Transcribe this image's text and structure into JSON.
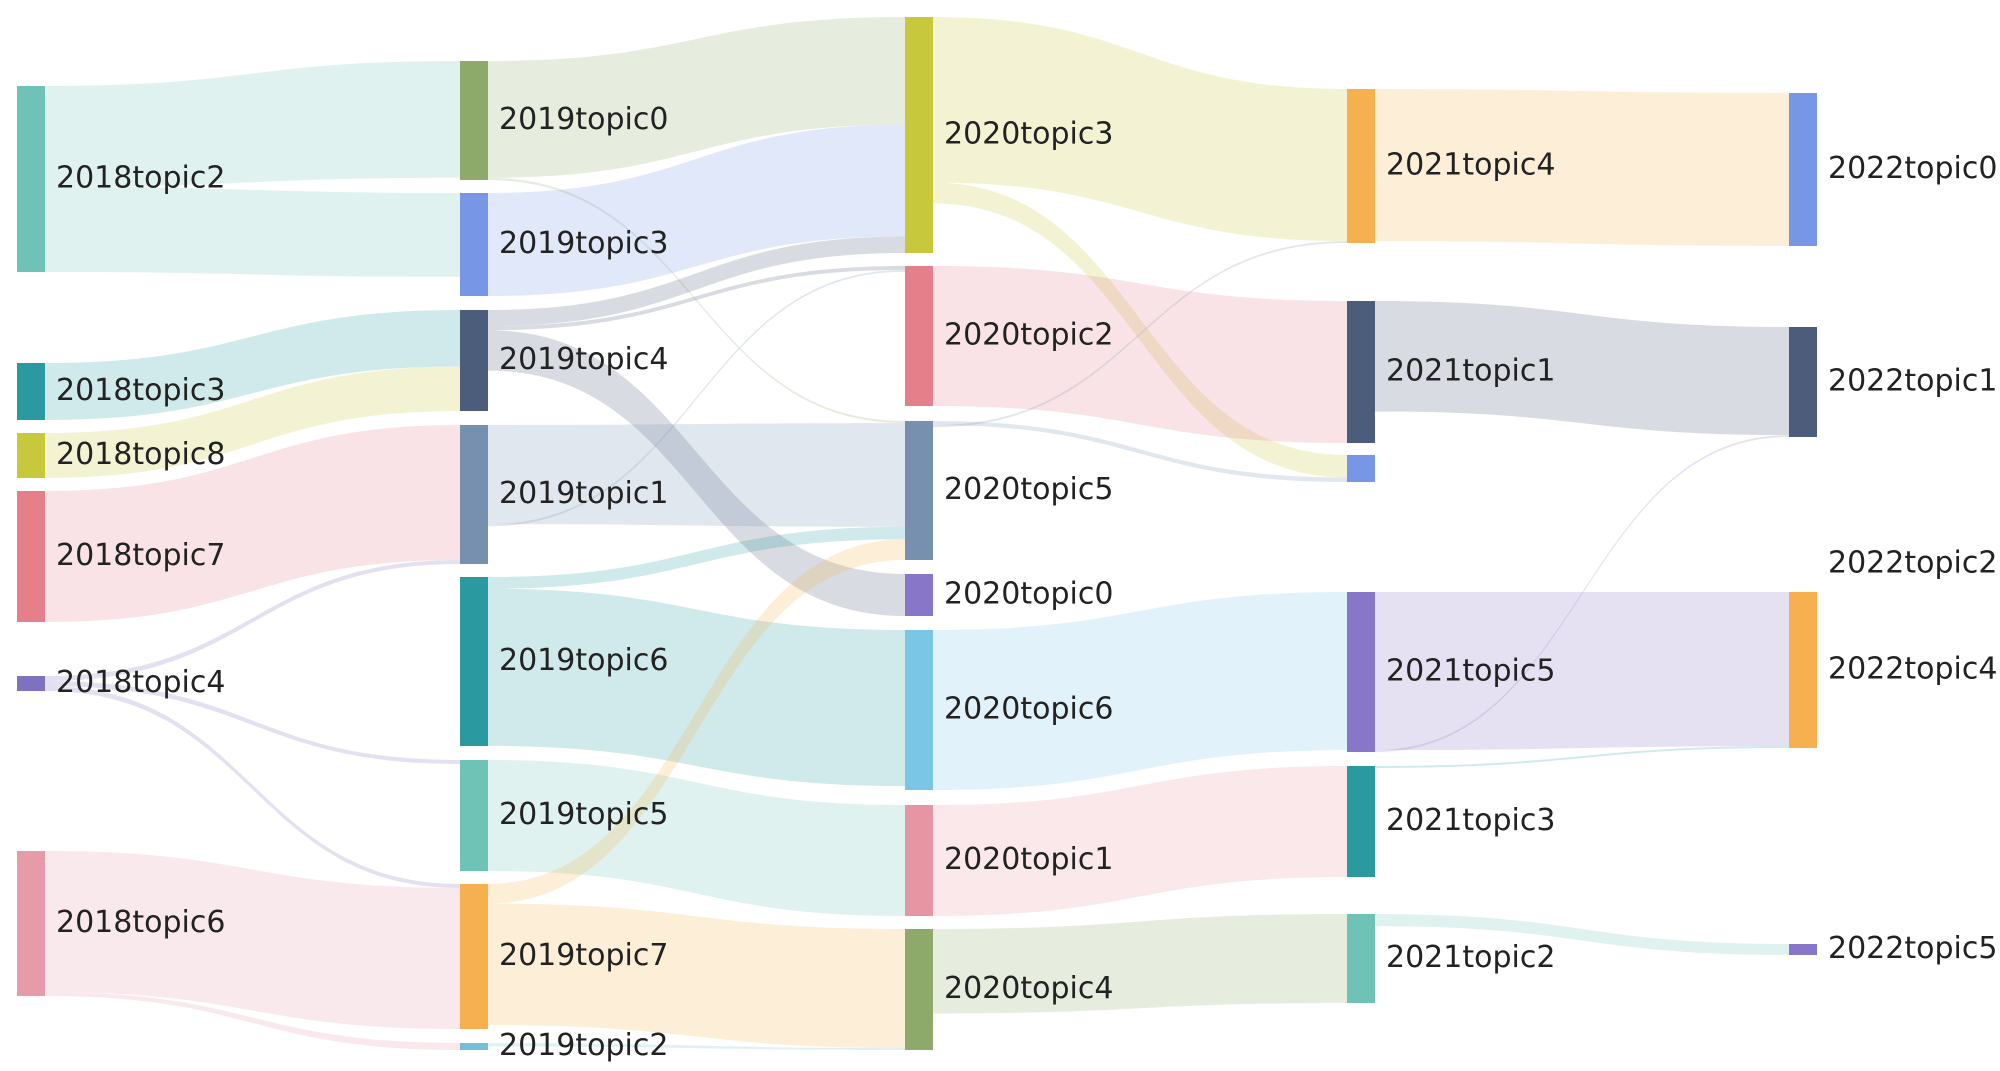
{
  "diagram": {
    "type": "sankey",
    "nodes": [
      {
        "id": "n18_2",
        "label": "2018topic2",
        "color": "#6fc3b6"
      },
      {
        "id": "n18_3",
        "label": "2018topic3",
        "color": "#2a9aa0"
      },
      {
        "id": "n18_8",
        "label": "2018topic8",
        "color": "#c8c83c"
      },
      {
        "id": "n18_7",
        "label": "2018topic7",
        "color": "#e5808b"
      },
      {
        "id": "n18_4",
        "label": "2018topic4",
        "color": "#7e72c0"
      },
      {
        "id": "n18_6",
        "label": "2018topic6",
        "color": "#e79aa8"
      },
      {
        "id": "n19_0",
        "label": "2019topic0",
        "color": "#8eaa6a"
      },
      {
        "id": "n19_3",
        "label": "2019topic3",
        "color": "#7896e6"
      },
      {
        "id": "n19_4",
        "label": "2019topic4",
        "color": "#4c5d7c"
      },
      {
        "id": "n19_1",
        "label": "2019topic1",
        "color": "#7790b0"
      },
      {
        "id": "n19_6",
        "label": "2019topic6",
        "color": "#2b9aa0"
      },
      {
        "id": "n19_5",
        "label": "2019topic5",
        "color": "#6fc3b6"
      },
      {
        "id": "n19_7",
        "label": "2019topic7",
        "color": "#f6b04f"
      },
      {
        "id": "n19_2",
        "label": "2019topic2",
        "color": "#73bfd7"
      },
      {
        "id": "n20_3",
        "label": "2020topic3",
        "color": "#c8c83c"
      },
      {
        "id": "n20_2",
        "label": "2020topic2",
        "color": "#e5808b"
      },
      {
        "id": "n20_5",
        "label": "2020topic5",
        "color": "#7790b0"
      },
      {
        "id": "n20_0",
        "label": "2020topic0",
        "color": "#8876c8"
      },
      {
        "id": "n20_6",
        "label": "2020topic6",
        "color": "#7ac6e6"
      },
      {
        "id": "n20_1",
        "label": "2020topic1",
        "color": "#e895a3"
      },
      {
        "id": "n20_4",
        "label": "2020topic4",
        "color": "#8eaa6a"
      },
      {
        "id": "n21_4",
        "label": "2021topic4",
        "color": "#f6b04f"
      },
      {
        "id": "n21_1",
        "label": "2021topic1",
        "color": "#4c5d7c"
      },
      {
        "id": "n21_x",
        "label": "",
        "color": "#7896e6"
      },
      {
        "id": "n21_5",
        "label": "2021topic5",
        "color": "#8876c8"
      },
      {
        "id": "n21_3",
        "label": "2021topic3",
        "color": "#2b9aa0"
      },
      {
        "id": "n21_2",
        "label": "2021topic2",
        "color": "#6fc3b6"
      },
      {
        "id": "n22_0",
        "label": "2022topic0",
        "color": "#7896e6"
      },
      {
        "id": "n22_1",
        "label": "2022topic1",
        "color": "#4c5d7c"
      },
      {
        "id": "n22_2",
        "label": "2022topic2",
        "color": "#f6b04f"
      },
      {
        "id": "n22_4",
        "label": "2022topic4",
        "color": "#f6b04f"
      },
      {
        "id": "n22_5",
        "label": "2022topic5",
        "color": "#8876c8"
      }
    ],
    "links": [
      {
        "source": "n18_2",
        "target": "n19_0",
        "value": 26
      },
      {
        "source": "n18_2",
        "target": "n19_3",
        "value": 22
      },
      {
        "source": "n18_3",
        "target": "n19_4",
        "value": 14
      },
      {
        "source": "n18_8",
        "target": "n19_4",
        "value": 11
      },
      {
        "source": "n18_7",
        "target": "n19_1",
        "value": 34
      },
      {
        "source": "n18_4",
        "target": "n19_1",
        "value": 1
      },
      {
        "source": "n18_4",
        "target": "n19_5",
        "value": 1
      },
      {
        "source": "n18_4",
        "target": "n19_7",
        "value": 1
      },
      {
        "source": "n18_6",
        "target": "n19_7",
        "value": 36
      },
      {
        "source": "n18_6",
        "target": "n19_2",
        "value": 1
      },
      {
        "source": "n19_0",
        "target": "n20_3",
        "value": 26
      },
      {
        "source": "n19_0",
        "target": "n20_5",
        "value": 0.5
      },
      {
        "source": "n19_3",
        "target": "n20_3",
        "value": 27
      },
      {
        "source": "n19_4",
        "target": "n20_3",
        "value": 4
      },
      {
        "source": "n19_4",
        "target": "n20_2",
        "value": 1
      },
      {
        "source": "n19_4",
        "target": "n20_0",
        "value": 10
      },
      {
        "source": "n19_1",
        "target": "n20_5",
        "value": 25
      },
      {
        "source": "n19_1",
        "target": "n20_2",
        "value": 0.5
      },
      {
        "source": "n19_6",
        "target": "n20_5",
        "value": 3
      },
      {
        "source": "n19_6",
        "target": "n20_6",
        "value": 40
      },
      {
        "source": "n19_5",
        "target": "n20_1",
        "value": 28
      },
      {
        "source": "n19_7",
        "target": "n20_5",
        "value": 5
      },
      {
        "source": "n19_7",
        "target": "n20_4",
        "value": 31
      },
      {
        "source": "n19_2",
        "target": "n20_4",
        "value": 0.5
      },
      {
        "source": "n20_3",
        "target": "n21_4",
        "value": 40
      },
      {
        "source": "n20_3",
        "target": "n21_x",
        "value": 5
      },
      {
        "source": "n20_2",
        "target": "n21_1",
        "value": 36
      },
      {
        "source": "n20_5",
        "target": "n21_x",
        "value": 1
      },
      {
        "source": "n20_5",
        "target": "n21_4",
        "value": 0.5
      },
      {
        "source": "n20_6",
        "target": "n21_5",
        "value": 41
      },
      {
        "source": "n20_1",
        "target": "n21_3",
        "value": 28
      },
      {
        "source": "n20_4",
        "target": "n21_2",
        "value": 22
      },
      {
        "source": "n21_4",
        "target": "n22_0",
        "value": 40
      },
      {
        "source": "n21_1",
        "target": "n22_1",
        "value": 28
      },
      {
        "source": "n21_5",
        "target": "n22_4",
        "value": 41
      },
      {
        "source": "n21_5",
        "target": "n22_1",
        "value": 0.5
      },
      {
        "source": "n21_3",
        "target": "n22_4",
        "value": 0.5
      },
      {
        "source": "n21_2",
        "target": "n22_5",
        "value": 3
      }
    ]
  }
}
